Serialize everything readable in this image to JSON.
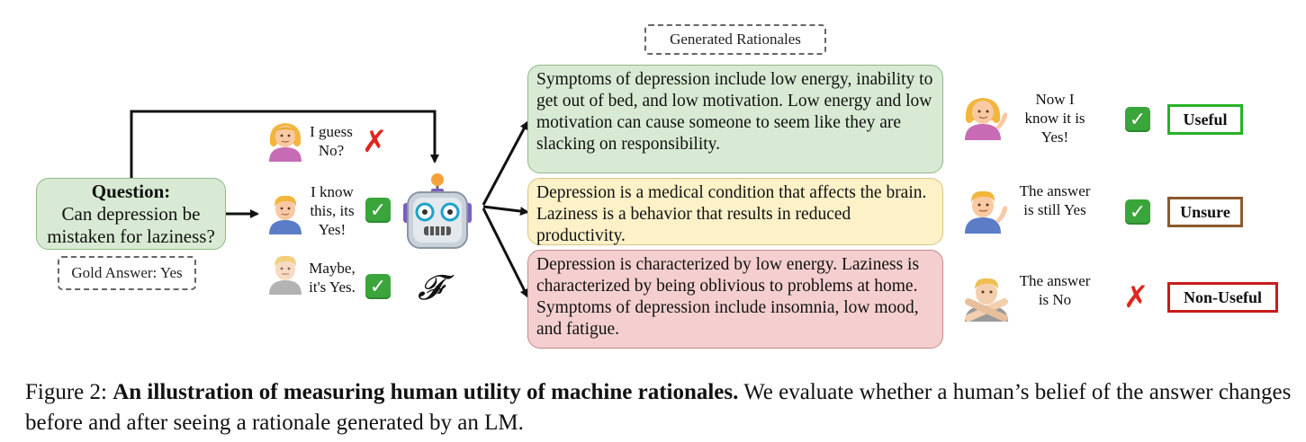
{
  "header": {
    "generated_rationales": "Generated Rationales"
  },
  "question": {
    "heading": "Question:",
    "text": "Can depression be mistaken for laziness?"
  },
  "gold_answer": "Gold Answer: Yes",
  "before": [
    {
      "speech": "I guess No?",
      "mark": "cross"
    },
    {
      "speech": "I know this, its Yes!",
      "mark": "check"
    },
    {
      "speech": "Maybe, it's Yes.",
      "mark": "check"
    }
  ],
  "model_symbol": "𝓕",
  "rationales": [
    {
      "text": "Symptoms of depression include low energy, inability to get out of bed, and low motivation. Low energy and low motivation can cause someone to seem like they are slacking on responsibility.",
      "color": "#d8ead3"
    },
    {
      "text": "Depression is a medical condition that affects the brain. Laziness is a behavior that results in reduced productivity.",
      "color": "#fdf1c8"
    },
    {
      "text": "Depression is characterized by low energy. Laziness is characterized by being oblivious to problems at home. Symptoms of depression include insomnia, low mood, and fatigue.",
      "color": "#f5cfcf"
    }
  ],
  "after": [
    {
      "speech": "Now I know it is Yes!",
      "mark": "check",
      "label": "Useful",
      "label_color": "#27b227"
    },
    {
      "speech": "The answer is still Yes",
      "mark": "check",
      "label": "Unsure",
      "label_color": "#8b5a2b"
    },
    {
      "speech": "The answer is No",
      "mark": "cross",
      "label": "Non-Useful",
      "label_color": "#c91b1b"
    }
  ],
  "caption": {
    "prefix": "Figure 2: ",
    "bold": "An illustration of measuring human utility of machine rationales.",
    "rest": " We evaluate whether a human’s belief of the answer changes before and after seeing a rationale generated by an LM."
  }
}
